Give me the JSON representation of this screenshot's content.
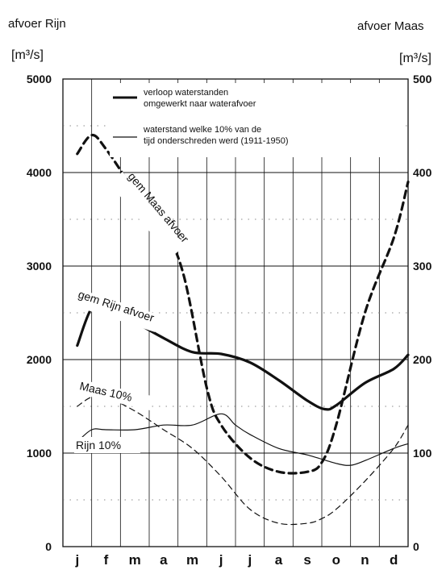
{
  "chart_data": {
    "type": "line",
    "left_axis": {
      "title": "afvoer Rijn",
      "unit": "[m³/s]",
      "ylim": [
        0,
        5000
      ],
      "ticks": [
        "0",
        "1000",
        "2000",
        "3000",
        "4000",
        "5000"
      ]
    },
    "right_axis": {
      "title": "afvoer Maas",
      "unit": "[m³/s]",
      "ylim": [
        0,
        500
      ],
      "ticks": [
        "0",
        "100",
        "200",
        "300",
        "400",
        "500"
      ]
    },
    "months": [
      "j",
      "f",
      "m",
      "a",
      "m",
      "j",
      "j",
      "a",
      "s",
      "o",
      "n",
      "d"
    ],
    "legend": [
      {
        "style": "thick",
        "text1": "verloop waterstanden",
        "text2": "omgewerkt naar waterafvoer"
      },
      {
        "style": "thin",
        "text1": "waterstand welke 10% van de",
        "text2": "tijd onderschreden werd (1911-1950)"
      }
    ],
    "series": [
      {
        "name": "gem Rijn afvoer",
        "axis": "left",
        "style": "thick-solid",
        "x": [
          0,
          0.5,
          1,
          2,
          3,
          4,
          5,
          6,
          7,
          8,
          8.6,
          9,
          10,
          11,
          11.5
        ],
        "values": [
          2150,
          2550,
          2550,
          2400,
          2230,
          2080,
          2060,
          1970,
          1780,
          1560,
          1470,
          1510,
          1750,
          1900,
          2050
        ]
      },
      {
        "name": "gem Maas afvoer",
        "axis": "right",
        "style": "thick-dashed",
        "x": [
          0,
          0.5,
          1,
          2,
          3,
          3.7,
          4.5,
          5,
          6,
          7,
          8,
          8.5,
          9,
          10,
          11,
          11.5
        ],
        "values": [
          420,
          440,
          425,
          380,
          340,
          290,
          170,
          130,
          95,
          80,
          80,
          90,
          130,
          250,
          330,
          390
        ]
      },
      {
        "name": "Rijn 10%",
        "axis": "left",
        "style": "thin-solid",
        "x": [
          0,
          0.5,
          1,
          2,
          3,
          4,
          5,
          5.5,
          6,
          7,
          8,
          9,
          9.5,
          10,
          11,
          11.5
        ],
        "values": [
          1120,
          1250,
          1250,
          1250,
          1300,
          1300,
          1420,
          1300,
          1200,
          1050,
          980,
          890,
          870,
          920,
          1050,
          1100
        ]
      },
      {
        "name": "Maas 10%",
        "axis": "right",
        "style": "thin-dashed",
        "x": [
          0,
          0.5,
          1,
          2,
          3,
          4,
          5,
          6,
          7,
          8,
          8.5,
          9,
          10,
          11,
          11.5
        ],
        "values": [
          150,
          160,
          160,
          145,
          125,
          105,
          75,
          40,
          25,
          25,
          30,
          40,
          70,
          105,
          130
        ]
      }
    ]
  }
}
